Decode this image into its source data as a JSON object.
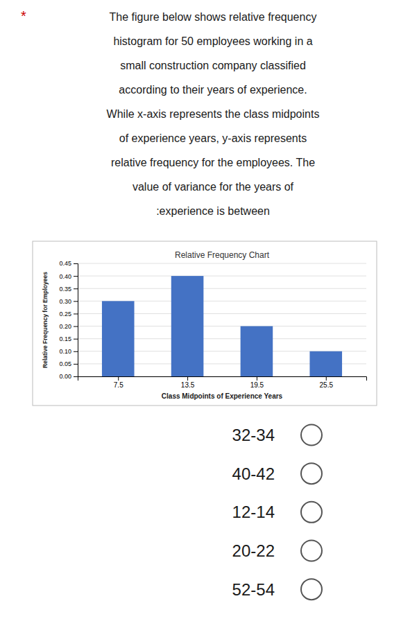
{
  "chart_data": {
    "type": "bar",
    "title": "Relative Frequency Chart",
    "x_label": "Class Midpoints of Experience Years",
    "y_label": "Relative Frequency for Employees",
    "x": [
      7.5,
      13.5,
      19.5,
      25.5
    ],
    "values": [
      0.3,
      0.4,
      0.2,
      0.1
    ],
    "color": "#4472c4",
    "xlim": [
      4.0,
      29.0
    ],
    "xticks": [
      7.5,
      13.5,
      19.5,
      25.5
    ],
    "ylim": [
      0,
      0.45
    ],
    "yticks": [
      {
        "value": 0,
        "label": "0.00"
      },
      0.05,
      {
        "value": 0.1,
        "label": "0.10"
      },
      0.15,
      {
        "value": 0.2,
        "label": "0.20"
      },
      0.25,
      {
        "value": 0.3,
        "label": "0.30"
      },
      0.35,
      {
        "value": 0.4,
        "label": "0.40"
      },
      0.45
    ],
    "grid": true
  },
  "question": {
    "bullet": "*",
    "bullet_color": "#cc0000",
    "lines": [
      "The figure below shows relative frequency",
      "histogram for 50 employees working in a",
      "small construction company classified",
      "according to their years of experience.",
      "While x-axis represents the class midpoints",
      "of experience years, y-axis represents",
      "relative frequency for the employees. The",
      "value of variance for the years of",
      ":experience is between"
    ],
    "options": [
      "32-34",
      "40-42",
      "12-14",
      "20-22",
      "52-54"
    ]
  }
}
